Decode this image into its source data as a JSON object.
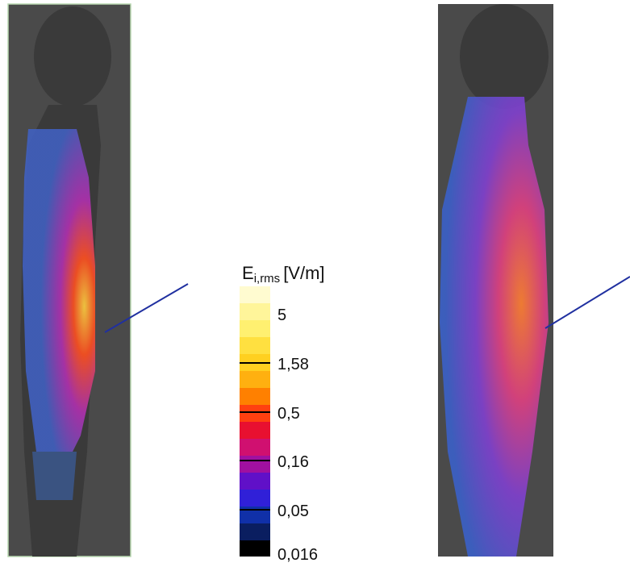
{
  "colorbar": {
    "title": {
      "symbol": "E",
      "subscript": "i,rms",
      "unit": "[V/m]"
    },
    "ticks": [
      "5",
      "1,58",
      "0,5",
      "0,16",
      "0,05",
      "0,016"
    ]
  }
}
